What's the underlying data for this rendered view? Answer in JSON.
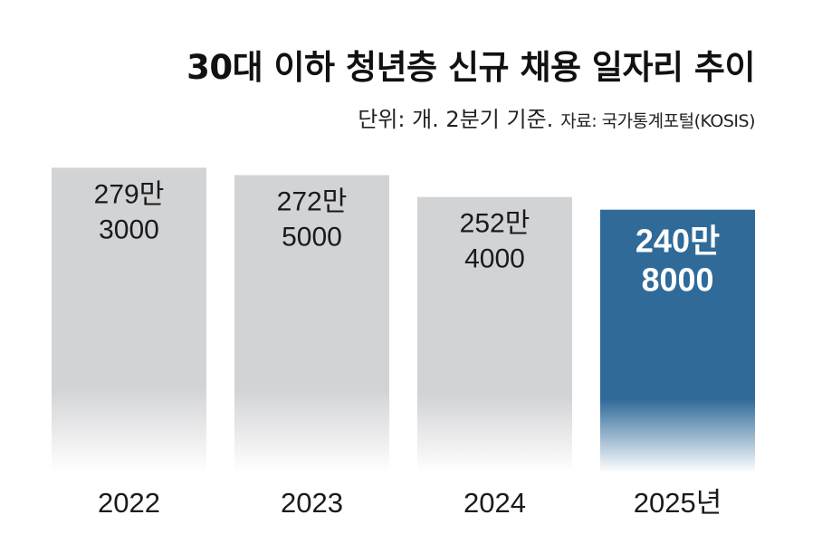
{
  "chart_data": {
    "type": "bar",
    "title": "30대 이하 청년층 신규 채용 일자리 추이",
    "subtitle_unit": "단위: 개. 2분기 기준.",
    "subtitle_source": "자료: 국가통계포털(KOSIS)",
    "categories": [
      "2022",
      "2023",
      "2024",
      "2025년"
    ],
    "values": [
      2793000,
      2725000,
      2524000,
      2408000
    ],
    "value_labels": [
      [
        "279만",
        "3000"
      ],
      [
        "272만",
        "5000"
      ],
      [
        "252만",
        "4000"
      ],
      [
        "240만",
        "8000"
      ]
    ],
    "ylim": [
      0,
      2870000
    ],
    "colors": {
      "default_bar": "#d2d3d5",
      "highlight_bar": "#2f6a99",
      "highlight_text": "#ffffff",
      "default_text": "#1a1a1a"
    },
    "highlight_index": 3
  }
}
